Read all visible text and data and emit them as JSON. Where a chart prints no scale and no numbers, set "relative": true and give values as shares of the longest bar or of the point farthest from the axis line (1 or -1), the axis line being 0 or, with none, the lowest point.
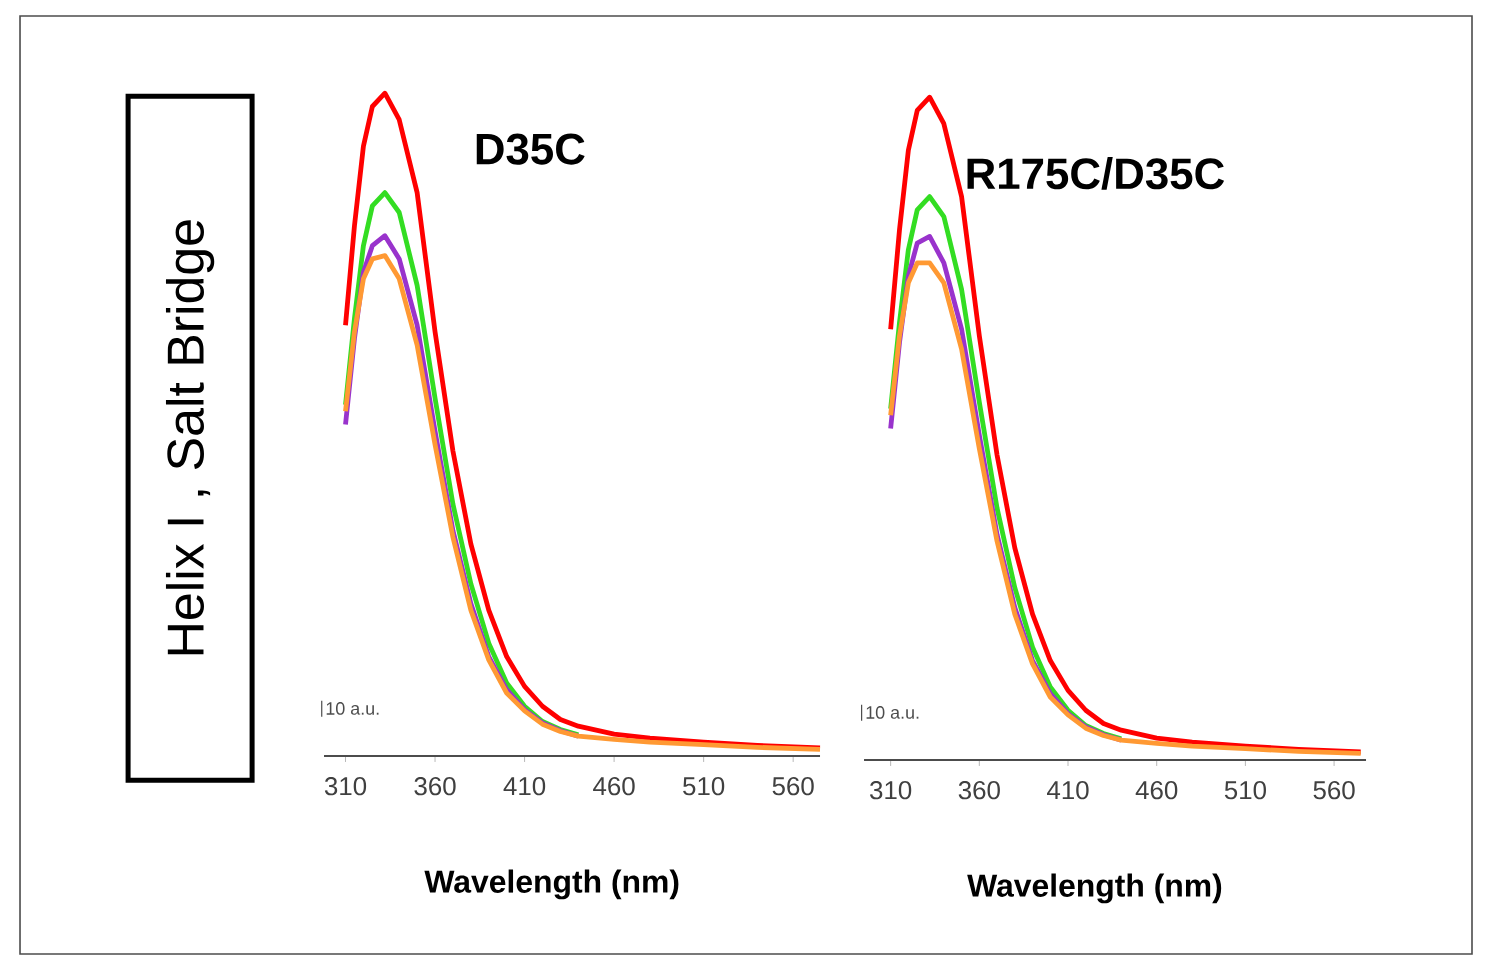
{
  "chart_data": [
    {
      "type": "line",
      "title": "D35C",
      "xlabel": "Wavelength (nm)",
      "ylabel": "Helix I , Salt Bridge",
      "relative": true,
      "xlim": [
        298,
        575
      ],
      "xticks": [
        310,
        360,
        410,
        460,
        510,
        560
      ],
      "annotations": [
        "10 a.u."
      ],
      "x": [
        310,
        315,
        320,
        325,
        332,
        340,
        350,
        360,
        370,
        380,
        390,
        400,
        410,
        420,
        430,
        440,
        460,
        480,
        510,
        540,
        575
      ],
      "series": [
        {
          "color": "#ff0000",
          "values": [
            0.65,
            0.8,
            0.92,
            0.98,
            1.0,
            0.96,
            0.85,
            0.64,
            0.46,
            0.32,
            0.22,
            0.15,
            0.105,
            0.075,
            0.055,
            0.045,
            0.033,
            0.027,
            0.021,
            0.016,
            0.012
          ]
        },
        {
          "color": "#33dd22",
          "values": [
            0.53,
            0.66,
            0.77,
            0.83,
            0.85,
            0.82,
            0.71,
            0.54,
            0.38,
            0.26,
            0.17,
            0.11,
            0.075,
            0.052,
            0.04,
            0.032,
            null,
            null,
            null,
            null,
            null
          ]
        },
        {
          "color": "#9933cc",
          "values": [
            0.5,
            0.63,
            0.73,
            0.77,
            0.785,
            0.75,
            0.65,
            0.49,
            0.34,
            0.23,
            0.15,
            0.1,
            0.07,
            0.05,
            0.038,
            0.03,
            null,
            null,
            null,
            null,
            null
          ]
        },
        {
          "color": "#ff9933",
          "values": [
            0.52,
            0.64,
            0.72,
            0.75,
            0.755,
            0.72,
            0.62,
            0.47,
            0.33,
            0.22,
            0.145,
            0.095,
            0.068,
            0.048,
            0.037,
            0.03,
            0.025,
            0.021,
            0.017,
            0.013,
            0.01
          ]
        }
      ]
    },
    {
      "type": "line",
      "title": "R175C/D35C",
      "xlabel": "Wavelength (nm)",
      "relative": true,
      "xlim": [
        295,
        578
      ],
      "xticks": [
        310,
        360,
        410,
        460,
        510,
        560
      ],
      "annotations": [
        "10 a.u."
      ],
      "x": [
        310,
        315,
        320,
        325,
        332,
        340,
        350,
        360,
        370,
        380,
        390,
        400,
        410,
        420,
        430,
        440,
        460,
        480,
        510,
        540,
        575
      ],
      "series": [
        {
          "color": "#ff0000",
          "values": [
            0.65,
            0.8,
            0.92,
            0.98,
            1.0,
            0.96,
            0.85,
            0.64,
            0.46,
            0.32,
            0.22,
            0.15,
            0.105,
            0.075,
            0.055,
            0.045,
            0.033,
            0.027,
            0.021,
            0.016,
            0.012
          ]
        },
        {
          "color": "#33dd22",
          "values": [
            0.53,
            0.66,
            0.77,
            0.83,
            0.85,
            0.82,
            0.71,
            0.54,
            0.38,
            0.26,
            0.17,
            0.11,
            0.075,
            0.052,
            0.04,
            0.032,
            null,
            null,
            null,
            null,
            null
          ]
        },
        {
          "color": "#9933cc",
          "values": [
            0.5,
            0.63,
            0.73,
            0.78,
            0.79,
            0.75,
            0.65,
            0.49,
            0.34,
            0.23,
            0.15,
            0.1,
            0.07,
            0.05,
            0.038,
            0.03,
            null,
            null,
            null,
            null,
            null
          ]
        },
        {
          "color": "#ff9933",
          "values": [
            0.52,
            0.64,
            0.72,
            0.75,
            0.75,
            0.72,
            0.62,
            0.47,
            0.33,
            0.22,
            0.145,
            0.095,
            0.068,
            0.048,
            0.037,
            0.03,
            0.025,
            0.021,
            0.017,
            0.013,
            0.01
          ]
        }
      ]
    }
  ]
}
